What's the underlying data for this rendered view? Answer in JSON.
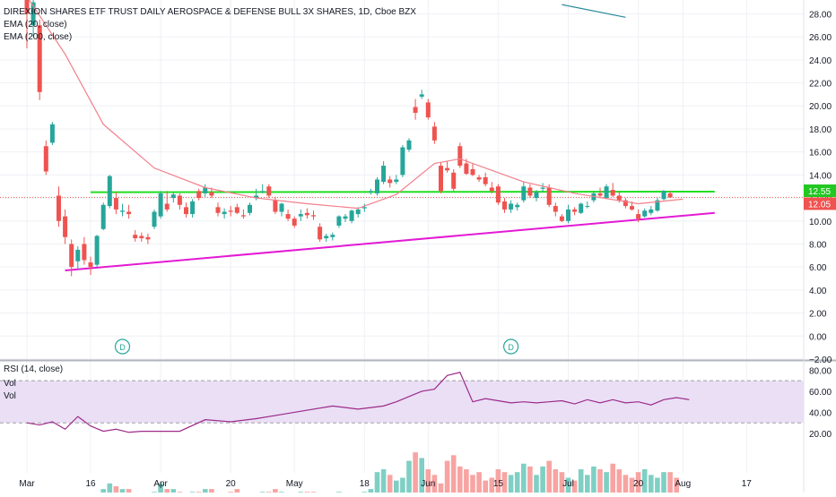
{
  "title": "DIREXION SHARES ETF TRUST DAILY AEROSPACE & DEFENSE BULL 3X SHARES, 1D, Cboe BZX",
  "indicators": [
    "EMA (20, close)",
    "EMA (200, close)"
  ],
  "rsi_label": "RSI (14, close)",
  "vol_labels": [
    "Vol",
    "Vol"
  ],
  "price_badges": [
    {
      "text": "12.55",
      "color": "#22c722"
    },
    {
      "text": "12.05",
      "color": "#ef5350"
    }
  ],
  "dividend_markers": [
    "D",
    "D"
  ],
  "colors": {
    "up": "#26a69a",
    "down": "#ef5350",
    "ema20": "#f27f8a",
    "ema200": "#26889a",
    "support_line": "#e31ad4",
    "resistance_line": "#22dd22",
    "rsi": "#9c2a8a",
    "rsi_band": "#eadff5"
  },
  "chart_data": [
    {
      "type": "candlestick",
      "title": "DIREXION SHARES ETF TRUST DAILY AEROSPACE & DEFENSE BULL 3X SHARES, 1D, Cboe BZX",
      "y_axis": {
        "ticks": [
          28,
          26,
          24,
          22,
          20,
          18,
          16,
          14,
          12,
          10,
          8,
          6,
          4,
          2,
          0,
          -2
        ],
        "ylim": [
          -2,
          29.2
        ],
        "side": "right"
      },
      "x_axis": {
        "labels": [
          "Mar",
          "16",
          "Apr",
          "20",
          "May",
          "18",
          "Jun",
          "15",
          "Jul",
          "20",
          "Aug",
          "17"
        ]
      },
      "candles": [
        {
          "o": 29.5,
          "h": 30.5,
          "l": 25.0,
          "c": 28.0
        },
        {
          "o": 27.0,
          "h": 29.8,
          "l": 26.0,
          "c": 29.0
        },
        {
          "o": 27.0,
          "h": 27.5,
          "l": 20.5,
          "c": 21.2
        },
        {
          "o": 16.5,
          "h": 17.0,
          "l": 14.0,
          "c": 14.3
        },
        {
          "o": 16.8,
          "h": 18.6,
          "l": 16.6,
          "c": 18.4
        },
        {
          "o": 12.2,
          "h": 13.0,
          "l": 9.5,
          "c": 10.0
        },
        {
          "o": 10.4,
          "h": 11.0,
          "l": 8.0,
          "c": 8.6
        },
        {
          "o": 8.0,
          "h": 8.4,
          "l": 5.2,
          "c": 6.0
        },
        {
          "o": 6.5,
          "h": 7.8,
          "l": 5.8,
          "c": 7.5
        },
        {
          "o": 8.0,
          "h": 8.6,
          "l": 6.2,
          "c": 6.6
        },
        {
          "o": 6.4,
          "h": 6.9,
          "l": 5.3,
          "c": 6.0
        },
        {
          "o": 6.2,
          "h": 8.8,
          "l": 6.0,
          "c": 8.7
        },
        {
          "o": 9.3,
          "h": 11.6,
          "l": 9.2,
          "c": 11.4
        },
        {
          "o": 11.3,
          "h": 14.0,
          "l": 11.1,
          "c": 13.9
        },
        {
          "o": 12.0,
          "h": 12.5,
          "l": 10.6,
          "c": 11.0
        },
        {
          "o": 10.8,
          "h": 11.5,
          "l": 10.4,
          "c": 10.9
        },
        {
          "o": 10.8,
          "h": 11.4,
          "l": 10.2,
          "c": 10.6
        },
        {
          "o": 8.8,
          "h": 9.2,
          "l": 8.2,
          "c": 8.5
        },
        {
          "o": 8.7,
          "h": 9.0,
          "l": 8.2,
          "c": 8.5
        },
        {
          "o": 8.6,
          "h": 8.9,
          "l": 8.0,
          "c": 8.4
        },
        {
          "o": 9.5,
          "h": 11.0,
          "l": 9.3,
          "c": 10.8
        },
        {
          "o": 10.4,
          "h": 12.6,
          "l": 10.2,
          "c": 12.4
        },
        {
          "o": 11.5,
          "h": 12.6,
          "l": 10.8,
          "c": 11.0
        },
        {
          "o": 12.0,
          "h": 12.5,
          "l": 11.6,
          "c": 12.3
        },
        {
          "o": 12.2,
          "h": 12.4,
          "l": 11.0,
          "c": 11.4
        },
        {
          "o": 11.2,
          "h": 11.6,
          "l": 10.3,
          "c": 10.6
        },
        {
          "o": 10.6,
          "h": 11.9,
          "l": 10.3,
          "c": 11.7
        },
        {
          "o": 12.6,
          "h": 12.8,
          "l": 11.8,
          "c": 12.0
        },
        {
          "o": 12.4,
          "h": 13.2,
          "l": 12.1,
          "c": 12.9
        },
        {
          "o": 12.5,
          "h": 12.9,
          "l": 12.0,
          "c": 12.2
        },
        {
          "o": 11.2,
          "h": 11.6,
          "l": 10.4,
          "c": 10.7
        },
        {
          "o": 10.6,
          "h": 11.1,
          "l": 10.2,
          "c": 10.8
        },
        {
          "o": 10.9,
          "h": 11.3,
          "l": 10.4,
          "c": 10.8
        },
        {
          "o": 11.2,
          "h": 11.5,
          "l": 10.6,
          "c": 10.7
        },
        {
          "o": 10.5,
          "h": 11.0,
          "l": 10.2,
          "c": 10.4
        },
        {
          "o": 10.7,
          "h": 11.6,
          "l": 10.5,
          "c": 11.4
        },
        {
          "o": 12.0,
          "h": 12.8,
          "l": 11.8,
          "c": 12.2
        },
        {
          "o": 12.6,
          "h": 13.2,
          "l": 12.4,
          "c": 12.6
        },
        {
          "o": 13.0,
          "h": 13.2,
          "l": 12.0,
          "c": 12.2
        },
        {
          "o": 11.8,
          "h": 12.1,
          "l": 10.6,
          "c": 10.8
        },
        {
          "o": 10.8,
          "h": 11.6,
          "l": 10.4,
          "c": 11.5
        },
        {
          "o": 10.6,
          "h": 11.0,
          "l": 10.0,
          "c": 10.2
        },
        {
          "o": 10.2,
          "h": 10.4,
          "l": 9.4,
          "c": 9.6
        },
        {
          "o": 10.4,
          "h": 11.0,
          "l": 10.0,
          "c": 10.6
        },
        {
          "o": 10.7,
          "h": 11.1,
          "l": 10.2,
          "c": 10.5
        },
        {
          "o": 10.5,
          "h": 10.9,
          "l": 10.1,
          "c": 10.4
        },
        {
          "o": 9.5,
          "h": 9.8,
          "l": 8.2,
          "c": 8.4
        },
        {
          "o": 8.5,
          "h": 8.9,
          "l": 8.2,
          "c": 8.7
        },
        {
          "o": 8.6,
          "h": 9.0,
          "l": 8.3,
          "c": 8.8
        },
        {
          "o": 9.6,
          "h": 10.5,
          "l": 9.4,
          "c": 10.4
        },
        {
          "o": 10.2,
          "h": 10.6,
          "l": 9.9,
          "c": 10.4
        },
        {
          "o": 10.0,
          "h": 11.0,
          "l": 9.8,
          "c": 10.9
        },
        {
          "o": 10.6,
          "h": 11.2,
          "l": 10.3,
          "c": 11.0
        },
        {
          "o": 11.1,
          "h": 11.5,
          "l": 10.8,
          "c": 11.2
        },
        {
          "o": 12.5,
          "h": 12.8,
          "l": 12.3,
          "c": 12.6
        },
        {
          "o": 12.4,
          "h": 13.8,
          "l": 12.2,
          "c": 13.6
        },
        {
          "o": 13.4,
          "h": 15.2,
          "l": 13.2,
          "c": 14.8
        },
        {
          "o": 13.6,
          "h": 13.9,
          "l": 12.9,
          "c": 13.3
        },
        {
          "o": 13.4,
          "h": 14.0,
          "l": 13.2,
          "c": 13.6
        },
        {
          "o": 14.0,
          "h": 16.6,
          "l": 13.8,
          "c": 16.4
        },
        {
          "o": 16.2,
          "h": 17.2,
          "l": 16.0,
          "c": 17.0
        },
        {
          "o": 19.9,
          "h": 20.6,
          "l": 18.8,
          "c": 19.4
        },
        {
          "o": 20.8,
          "h": 21.4,
          "l": 20.6,
          "c": 21.0
        },
        {
          "o": 20.3,
          "h": 20.6,
          "l": 18.8,
          "c": 19.0
        },
        {
          "o": 18.2,
          "h": 18.6,
          "l": 16.7,
          "c": 17.0
        },
        {
          "o": 14.8,
          "h": 15.1,
          "l": 12.4,
          "c": 12.6
        },
        {
          "o": 14.6,
          "h": 15.2,
          "l": 14.2,
          "c": 14.4
        },
        {
          "o": 14.2,
          "h": 14.5,
          "l": 12.6,
          "c": 12.8
        },
        {
          "o": 16.5,
          "h": 16.8,
          "l": 14.6,
          "c": 14.8
        },
        {
          "o": 15.0,
          "h": 15.4,
          "l": 14.0,
          "c": 14.1
        },
        {
          "o": 14.5,
          "h": 15.0,
          "l": 13.9,
          "c": 14.0
        },
        {
          "o": 13.8,
          "h": 14.0,
          "l": 13.4,
          "c": 13.6
        },
        {
          "o": 13.8,
          "h": 14.2,
          "l": 13.0,
          "c": 13.2
        },
        {
          "o": 12.9,
          "h": 13.4,
          "l": 12.4,
          "c": 12.6
        },
        {
          "o": 13.0,
          "h": 13.2,
          "l": 11.4,
          "c": 11.6
        },
        {
          "o": 11.7,
          "h": 12.0,
          "l": 10.7,
          "c": 11.0
        },
        {
          "o": 11.0,
          "h": 11.8,
          "l": 10.7,
          "c": 11.5
        },
        {
          "o": 11.2,
          "h": 11.6,
          "l": 10.9,
          "c": 11.4
        },
        {
          "o": 11.8,
          "h": 13.4,
          "l": 11.6,
          "c": 13.0
        },
        {
          "o": 12.9,
          "h": 13.2,
          "l": 12.0,
          "c": 12.2
        },
        {
          "o": 12.0,
          "h": 12.7,
          "l": 11.7,
          "c": 12.5
        },
        {
          "o": 12.8,
          "h": 13.3,
          "l": 12.5,
          "c": 12.9
        },
        {
          "o": 12.9,
          "h": 13.2,
          "l": 11.2,
          "c": 11.4
        },
        {
          "o": 11.3,
          "h": 11.6,
          "l": 10.4,
          "c": 10.8
        },
        {
          "o": 10.4,
          "h": 10.6,
          "l": 9.9,
          "c": 10.0
        },
        {
          "o": 10.0,
          "h": 11.4,
          "l": 9.8,
          "c": 11.0
        },
        {
          "o": 11.0,
          "h": 11.2,
          "l": 10.5,
          "c": 10.8
        },
        {
          "o": 10.7,
          "h": 11.6,
          "l": 10.6,
          "c": 11.5
        },
        {
          "o": 11.3,
          "h": 11.7,
          "l": 11.1,
          "c": 11.3
        },
        {
          "o": 11.8,
          "h": 12.6,
          "l": 11.6,
          "c": 12.4
        },
        {
          "o": 12.4,
          "h": 12.9,
          "l": 12.0,
          "c": 12.2
        },
        {
          "o": 12.0,
          "h": 13.2,
          "l": 11.9,
          "c": 13.0
        },
        {
          "o": 12.7,
          "h": 13.3,
          "l": 12.1,
          "c": 12.2
        },
        {
          "o": 12.2,
          "h": 12.6,
          "l": 11.6,
          "c": 11.8
        },
        {
          "o": 11.8,
          "h": 12.0,
          "l": 11.1,
          "c": 11.3
        },
        {
          "o": 11.3,
          "h": 11.7,
          "l": 10.9,
          "c": 11.0
        },
        {
          "o": 10.6,
          "h": 11.0,
          "l": 9.9,
          "c": 10.2
        },
        {
          "o": 10.4,
          "h": 11.1,
          "l": 10.3,
          "c": 10.9
        },
        {
          "o": 10.7,
          "h": 11.3,
          "l": 10.5,
          "c": 11.0
        },
        {
          "o": 10.9,
          "h": 12.0,
          "l": 10.8,
          "c": 11.8
        },
        {
          "o": 11.9,
          "h": 12.7,
          "l": 11.8,
          "c": 12.6
        },
        {
          "o": 12.4,
          "h": 12.6,
          "l": 12.0,
          "c": 12.05
        }
      ],
      "ema20": [
        [
          0,
          29.5
        ],
        [
          6,
          24.5
        ],
        [
          12,
          18.4
        ],
        [
          20,
          14.6
        ],
        [
          28,
          12.9
        ],
        [
          36,
          12.0
        ],
        [
          44,
          11.5
        ],
        [
          52,
          11.1
        ],
        [
          58,
          12.3
        ],
        [
          64,
          15.0
        ],
        [
          68,
          15.4
        ],
        [
          72,
          14.6
        ],
        [
          78,
          13.4
        ],
        [
          86,
          12.4
        ],
        [
          96,
          11.5
        ],
        [
          103,
          11.9
        ]
      ],
      "ema200_visible_segment": [
        [
          84,
          28.8
        ],
        [
          94,
          27.7
        ]
      ],
      "trendlines": [
        {
          "name": "support",
          "from": [
            6,
            5.7
          ],
          "to": [
            108,
            10.7
          ]
        },
        {
          "name": "resistance",
          "from": [
            10,
            12.5
          ],
          "to": [
            108,
            12.55
          ]
        }
      ],
      "current_price": 12.05,
      "resistance_price": 12.55
    },
    {
      "type": "line",
      "title": "RSI (14, close)",
      "y_axis": {
        "ticks": [
          80,
          60,
          40,
          20
        ],
        "ylim": [
          14,
          88
        ]
      },
      "band": [
        30,
        70
      ],
      "x": [
        0,
        2,
        4,
        6,
        8,
        10,
        12,
        14,
        16,
        18,
        20,
        24,
        28,
        32,
        36,
        40,
        44,
        48,
        52,
        56,
        58,
        60,
        62,
        64,
        66,
        68,
        70,
        72,
        74,
        76,
        78,
        80,
        82,
        84,
        86,
        88,
        90,
        92,
        94,
        96,
        98,
        100,
        102,
        104
      ],
      "values": [
        30,
        28,
        31,
        24,
        36,
        27,
        22,
        24,
        21,
        22,
        22,
        22,
        33,
        31,
        34,
        38,
        42,
        46,
        43,
        46,
        50,
        55,
        60,
        62,
        75,
        78,
        50,
        53,
        51,
        49,
        50,
        49,
        50,
        51,
        48,
        52,
        49,
        52,
        49,
        50,
        47,
        52,
        54,
        52
      ]
    },
    {
      "type": "bar",
      "title": "Vol",
      "values": [
        3,
        2,
        2,
        2,
        3,
        2,
        2,
        1,
        2,
        3,
        2,
        3,
        6,
        8,
        7,
        6,
        6,
        3,
        3,
        2,
        5,
        8,
        6,
        6,
        5,
        4,
        5,
        5,
        6,
        6,
        4,
        4,
        5,
        6,
        4,
        3,
        4,
        5,
        5,
        6,
        5,
        4,
        4,
        5,
        5,
        5,
        4,
        3,
        3,
        5,
        4,
        4,
        4,
        5,
        6,
        12,
        13,
        11,
        9,
        10,
        16,
        19,
        17,
        13,
        11,
        8,
        16,
        18,
        14,
        13,
        11,
        12,
        9,
        10,
        13,
        12,
        11,
        12,
        15,
        14,
        11,
        14,
        16,
        13,
        12,
        10,
        9,
        13,
        11,
        14,
        13,
        12,
        15,
        13,
        11,
        10,
        12,
        13,
        11,
        10,
        12,
        12,
        10
      ]
    }
  ]
}
